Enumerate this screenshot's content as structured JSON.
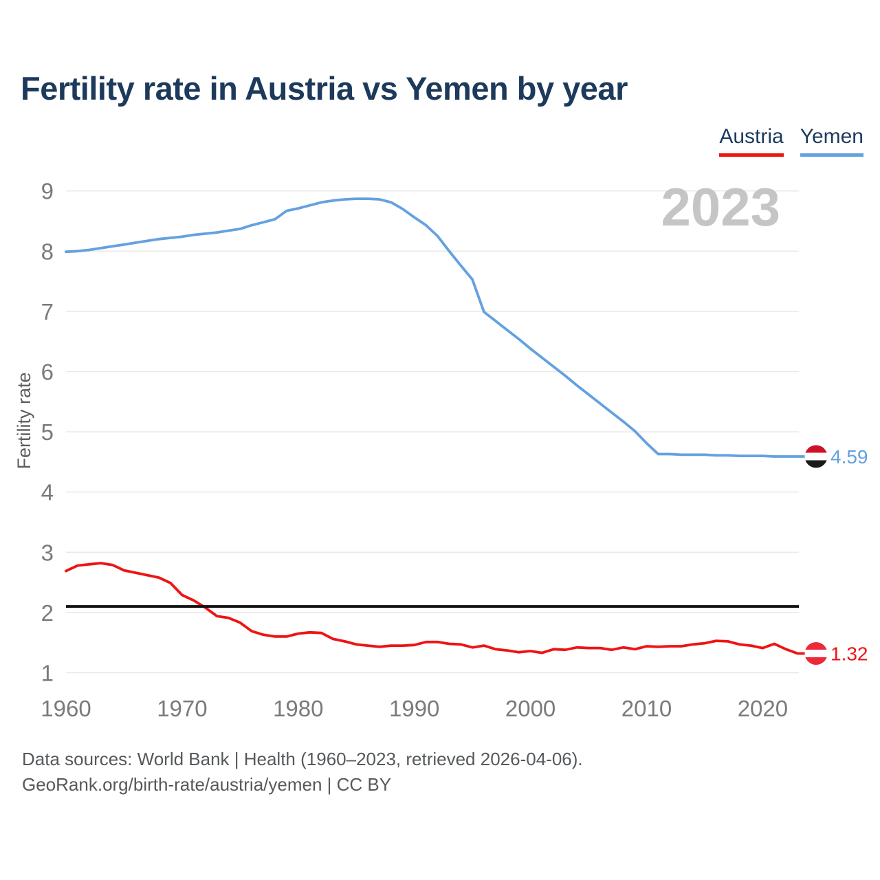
{
  "title": "Fertility rate in Austria vs Yemen by year",
  "watermark": "2023",
  "legend": [
    {
      "label": "Austria",
      "color": "#ee1414"
    },
    {
      "label": "Yemen",
      "color": "#64a1e0"
    }
  ],
  "footer": {
    "line1": "Data sources: World Bank | Health (1960–2023, retrieved 2026-04-06).",
    "line2": "GeoRank.org/birth-rate/austria/yemen | CC BY"
  },
  "chart_data": {
    "type": "line",
    "title": "Fertility rate in Austria vs Yemen by year",
    "ylabel": "Fertility rate",
    "ylim": [
      1,
      9
    ],
    "xlim": [
      1960,
      2023
    ],
    "grid": true,
    "y_ticks": [
      1,
      2,
      3,
      4,
      5,
      6,
      7,
      8,
      9
    ],
    "x_ticks": [
      1960,
      1970,
      1980,
      1990,
      2000,
      2010,
      2020
    ],
    "reference_line": 2.1,
    "reference_line_color": "#111111",
    "years": [
      1960,
      1961,
      1962,
      1963,
      1964,
      1965,
      1966,
      1967,
      1968,
      1969,
      1970,
      1971,
      1972,
      1973,
      1974,
      1975,
      1976,
      1977,
      1978,
      1979,
      1980,
      1981,
      1982,
      1983,
      1984,
      1985,
      1986,
      1987,
      1988,
      1989,
      1990,
      1991,
      1992,
      1993,
      1994,
      1995,
      1996,
      1997,
      1998,
      1999,
      2000,
      2001,
      2002,
      2003,
      2004,
      2005,
      2006,
      2007,
      2008,
      2009,
      2010,
      2011,
      2012,
      2013,
      2014,
      2015,
      2016,
      2017,
      2018,
      2019,
      2020,
      2021,
      2022,
      2023
    ],
    "series": [
      {
        "name": "Yemen",
        "color": "#64a1e0",
        "end_label": "4.59",
        "flag_stripes": [
          "#ce1126",
          "#ffffff",
          "#1a1a1a"
        ],
        "values": [
          7.99,
          8.0,
          8.02,
          8.05,
          8.08,
          8.11,
          8.14,
          8.17,
          8.2,
          8.22,
          8.24,
          8.27,
          8.29,
          8.31,
          8.34,
          8.37,
          8.43,
          8.48,
          8.53,
          8.67,
          8.71,
          8.76,
          8.81,
          8.84,
          8.86,
          8.87,
          8.87,
          8.86,
          8.81,
          8.7,
          8.56,
          8.43,
          8.25,
          8.0,
          7.76,
          7.53,
          6.99,
          6.84,
          6.69,
          6.54,
          6.38,
          6.23,
          6.08,
          5.93,
          5.77,
          5.62,
          5.47,
          5.32,
          5.17,
          5.01,
          4.81,
          4.63,
          4.63,
          4.62,
          4.62,
          4.62,
          4.61,
          4.61,
          4.6,
          4.6,
          4.6,
          4.59,
          4.59,
          4.59
        ]
      },
      {
        "name": "Austria",
        "color": "#ee1414",
        "end_label": "1.32",
        "flag_stripes": [
          "#ed2939",
          "#ffffff",
          "#ed2939"
        ],
        "values": [
          2.69,
          2.78,
          2.8,
          2.82,
          2.79,
          2.7,
          2.66,
          2.62,
          2.58,
          2.49,
          2.29,
          2.2,
          2.08,
          1.94,
          1.91,
          1.83,
          1.69,
          1.63,
          1.6,
          1.6,
          1.65,
          1.67,
          1.66,
          1.56,
          1.52,
          1.47,
          1.45,
          1.43,
          1.45,
          1.45,
          1.46,
          1.51,
          1.51,
          1.48,
          1.47,
          1.42,
          1.45,
          1.39,
          1.37,
          1.34,
          1.36,
          1.33,
          1.39,
          1.38,
          1.42,
          1.41,
          1.41,
          1.38,
          1.42,
          1.39,
          1.44,
          1.43,
          1.44,
          1.44,
          1.47,
          1.49,
          1.53,
          1.52,
          1.47,
          1.45,
          1.41,
          1.48,
          1.39,
          1.32
        ]
      }
    ]
  }
}
